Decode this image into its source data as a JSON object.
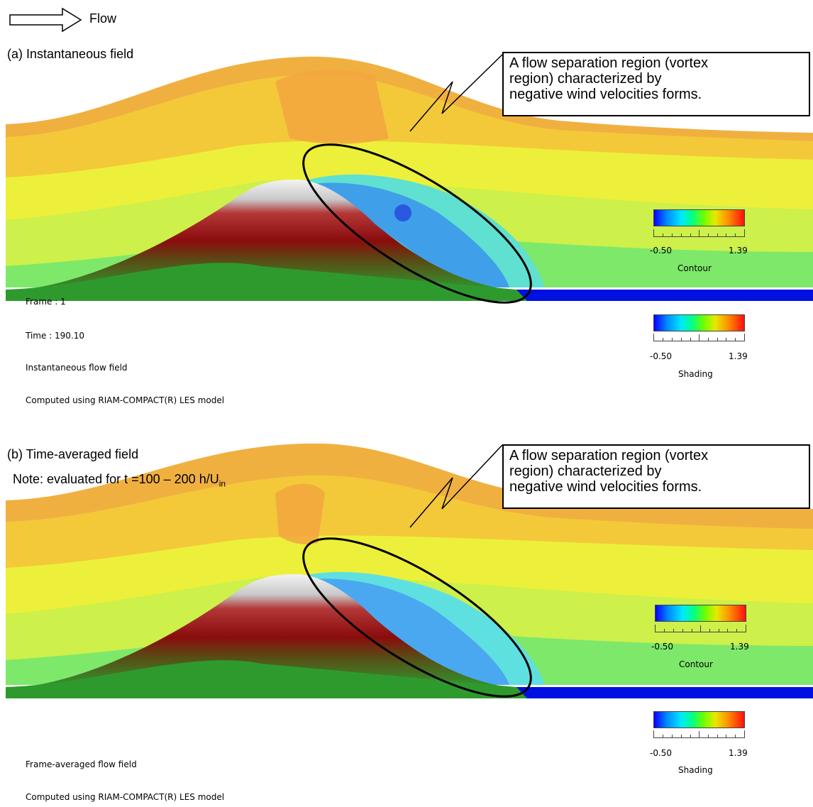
{
  "legend": {
    "flow_label": "Flow"
  },
  "panel_a": {
    "title": "(a) Instantaneous field",
    "callout": [
      "A flow separation region (vortex",
      "region) characterized by",
      "negative wind velocities forms."
    ],
    "frame": "Frame : 1",
    "time": "Time : 190.10",
    "field_desc": "Instantaneous flow field",
    "computed": "Computed using RIAM-COMPACT(R) LES model",
    "contour": {
      "min": "-0.50",
      "max": "1.39",
      "label": "Contour"
    },
    "shading": {
      "min": "-0.50",
      "max": "1.39",
      "label": "Shading"
    }
  },
  "panel_b": {
    "title": "(b) Time-averaged field",
    "note": "Note: evaluated for t =100 – 200 h/U",
    "note_sub": "in",
    "callout": [
      "A flow separation region (vortex",
      "region) characterized by",
      "negative wind velocities forms."
    ],
    "field_desc": "Frame-averaged flow field",
    "computed": "Computed using RIAM-COMPACT(R) LES model",
    "contour": {
      "min": "-0.50",
      "max": "1.39",
      "label": "Contour"
    },
    "shading": {
      "min": "-0.50",
      "max": "1.39",
      "label": "Shading"
    }
  },
  "colors": {
    "upstream": "#f5ef3a",
    "high": "#f2a640",
    "separation": "#4aa8f0",
    "hill_top": "#e8e8e8",
    "hill_body": "#8a1010",
    "hill_base": "#2e9a2e",
    "floor": "#0010e0"
  }
}
